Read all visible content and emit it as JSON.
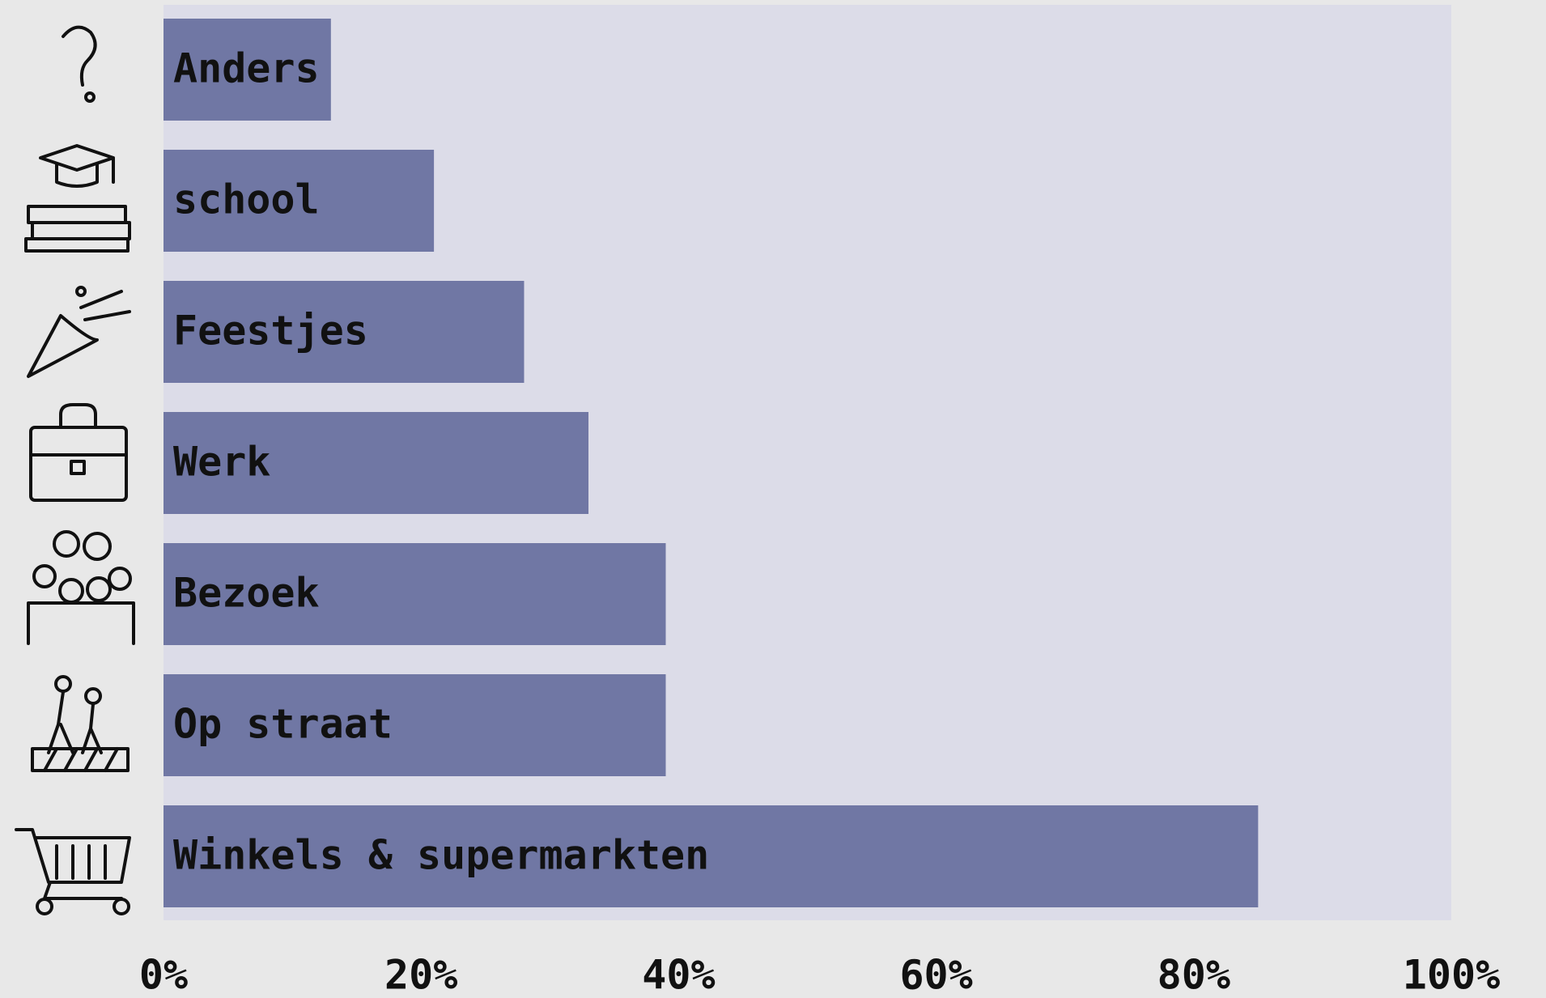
{
  "chart_data": {
    "type": "barh",
    "categories": [
      "Anders",
      "school",
      "Feestjes",
      "Werk",
      "Bezoek",
      "Op straat",
      "Winkels & supermarkten"
    ],
    "values": [
      13,
      21,
      28,
      33,
      39,
      39,
      85
    ],
    "color": "#7077a4",
    "xlim": [
      0,
      100
    ],
    "xticks": [
      {
        "value": 0,
        "label": "0%"
      },
      {
        "value": 20,
        "label": "20%"
      },
      {
        "value": 40,
        "label": "40%"
      },
      {
        "value": 60,
        "label": "60%"
      },
      {
        "value": 80,
        "label": "80%"
      },
      {
        "value": 100,
        "label": "100%"
      }
    ],
    "grid": false
  }
}
